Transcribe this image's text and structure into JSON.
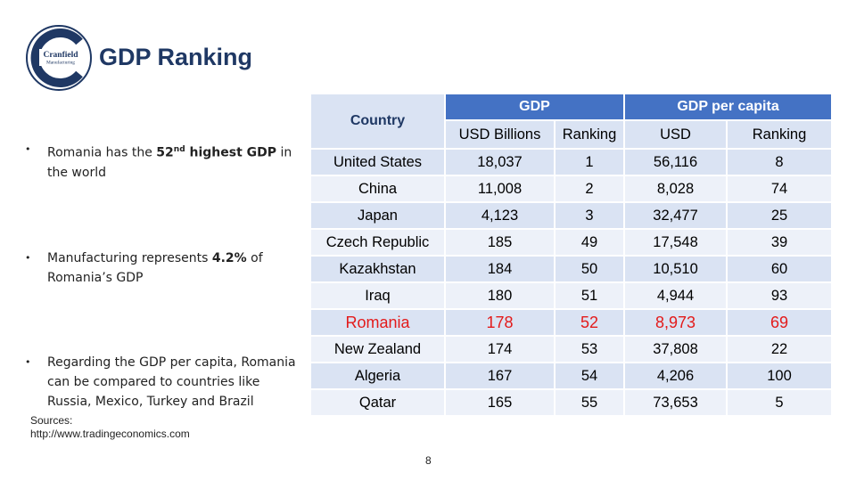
{
  "header": {
    "title": "GDP Ranking",
    "logo": {
      "line1": "Cranfield",
      "line2": "Manufacturing",
      "color": "#1f3864"
    }
  },
  "bullets": [
    {
      "pre": "Romania has the ",
      "bold": "52",
      "sup": "nd",
      "post": " highest GDP in the world",
      "post_bold": " highest GDP"
    },
    {
      "pre": "Manufacturing represents ",
      "bold": "4.2%",
      "post": " of Romania’s GDP"
    },
    {
      "text": "Regarding the GDP per capita, Romania can be compared to countries like Russia, Mexico, Turkey and Brazil"
    }
  ],
  "sources": {
    "label": "Sources:",
    "url": "http://www.tradingeconomics.com"
  },
  "page_number": "8",
  "table": {
    "group_headers": {
      "country": "Country",
      "gdp": "GDP",
      "per_capita": "GDP per capita"
    },
    "sub_headers": [
      "USD Billions",
      "Ranking",
      "USD",
      "Ranking"
    ],
    "highlight_color": "#e31b1b",
    "rows": [
      {
        "country": "United States",
        "gdp": "18,037",
        "gdp_rank": "1",
        "pc": "56,116",
        "pc_rank": "8"
      },
      {
        "country": "China",
        "gdp": "11,008",
        "gdp_rank": "2",
        "pc": "8,028",
        "pc_rank": "74"
      },
      {
        "country": "Japan",
        "gdp": "4,123",
        "gdp_rank": "3",
        "pc": "32,477",
        "pc_rank": "25"
      },
      {
        "country": "Czech Republic",
        "gdp": "185",
        "gdp_rank": "49",
        "pc": "17,548",
        "pc_rank": "39"
      },
      {
        "country": "Kazakhstan",
        "gdp": "184",
        "gdp_rank": "50",
        "pc": "10,510",
        "pc_rank": "60"
      },
      {
        "country": "Iraq",
        "gdp": "180",
        "gdp_rank": "51",
        "pc": "4,944",
        "pc_rank": "93"
      },
      {
        "country": "Romania",
        "gdp": "178",
        "gdp_rank": "52",
        "pc": "8,973",
        "pc_rank": "69"
      },
      {
        "country": "New Zealand",
        "gdp": "174",
        "gdp_rank": "53",
        "pc": "37,808",
        "pc_rank": "22"
      },
      {
        "country": "Algeria",
        "gdp": "167",
        "gdp_rank": "54",
        "pc": "4,206",
        "pc_rank": "100"
      },
      {
        "country": "Qatar",
        "gdp": "165",
        "gdp_rank": "55",
        "pc": "73,653",
        "pc_rank": "5"
      }
    ]
  }
}
